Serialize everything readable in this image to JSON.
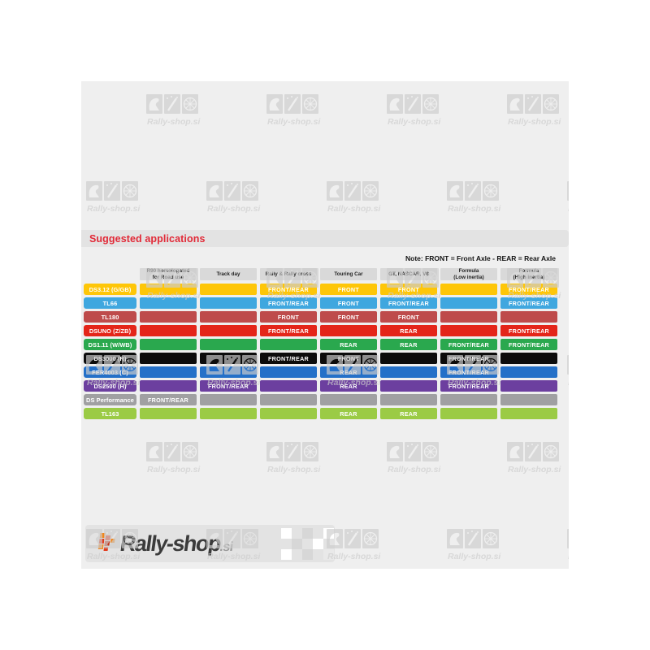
{
  "watermark": {
    "text": "Rally-shop.si",
    "color": "#cdcdcd"
  },
  "heading": {
    "label": "Suggested applications",
    "color": "#e22937"
  },
  "note": {
    "text": "Note: FRONT = Front Axle - REAR = Rear Axle"
  },
  "footer_logo": {
    "brand": "Rally-shop",
    "tld": ".si"
  },
  "chart_data": {
    "type": "table",
    "title": "Suggested applications",
    "note": "Note: FRONT = Front Axle - REAR = Rear Axle",
    "columns": [
      "R90 homologated\nfor Road use",
      "Track day",
      "Rally & Rally cross",
      "Touring Car",
      "GT, NASCAR, V8",
      "Formula\n(Low inertia)",
      "Formula\n(High inertia)"
    ],
    "rows": [
      {
        "compound": "DS3.12 (G/GB)",
        "color": "#fec608",
        "values": [
          "",
          "",
          "FRONT/REAR",
          "FRONT",
          "FRONT",
          "",
          "FRONT/REAR"
        ]
      },
      {
        "compound": "TL66",
        "color": "#3fa7df",
        "values": [
          "",
          "",
          "FRONT/REAR",
          "FRONT",
          "FRONT/REAR",
          "",
          "FRONT/REAR"
        ]
      },
      {
        "compound": "TL180",
        "color": "#be4b4b",
        "values": [
          "",
          "",
          "FRONT",
          "FRONT",
          "FRONT",
          "",
          ""
        ]
      },
      {
        "compound": "DSUNO (Z/ZB)",
        "color": "#e42519",
        "values": [
          "",
          "",
          "FRONT/REAR",
          "",
          "REAR",
          "",
          "FRONT/REAR"
        ]
      },
      {
        "compound": "DS1.11 (W/WB)",
        "color": "#2aa84e",
        "values": [
          "",
          "",
          "",
          "REAR",
          "REAR",
          "FRONT/REAR",
          "FRONT/REAR"
        ]
      },
      {
        "compound": "DS3000 (R)",
        "color": "#0c0c0c",
        "values": [
          "",
          "",
          "FRONT/REAR",
          "FRONT",
          "",
          "FRONT/REAR",
          ""
        ]
      },
      {
        "compound": "FER4003 (C)",
        "color": "#2470c8",
        "values": [
          "",
          "",
          "",
          "REAR",
          "",
          "FRONT/REAR",
          ""
        ]
      },
      {
        "compound": "DS2500 (H)",
        "color": "#6c3f9f",
        "values": [
          "",
          "FRONT/REAR",
          "",
          "REAR",
          "",
          "FRONT/REAR",
          ""
        ]
      },
      {
        "compound": "DS Performance",
        "color": "#a0a0a2",
        "values": [
          "FRONT/REAR",
          "",
          "",
          "",
          "",
          "",
          ""
        ]
      },
      {
        "compound": "TL163",
        "color": "#9bcb45",
        "values": [
          "",
          "",
          "",
          "REAR",
          "REAR",
          "",
          ""
        ]
      }
    ]
  }
}
